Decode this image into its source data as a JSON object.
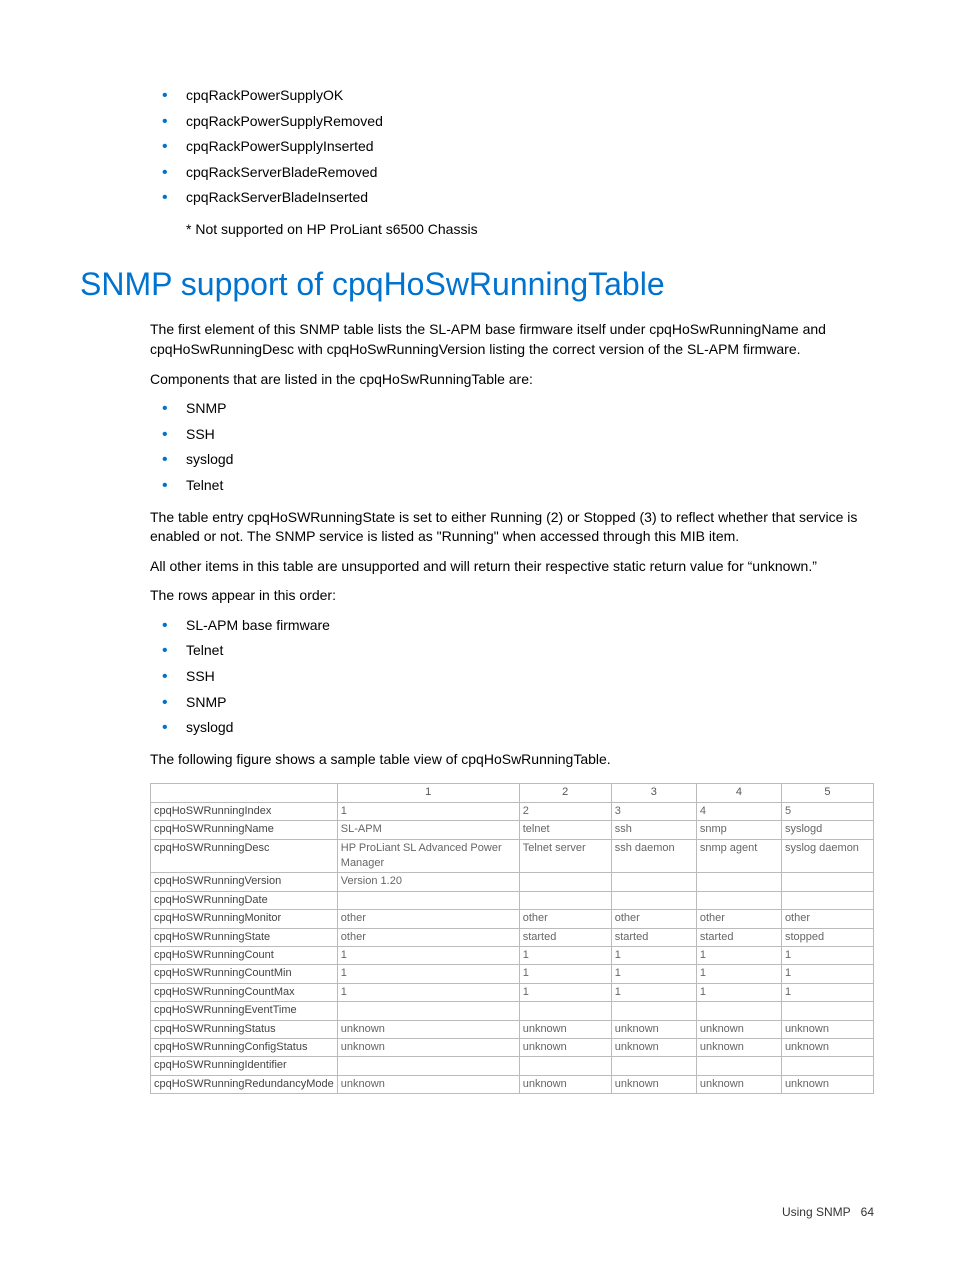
{
  "top_list": [
    "cpqRackPowerSupplyOK",
    "cpqRackPowerSupplyRemoved",
    "cpqRackPowerSupplyInserted",
    "cpqRackServerBladeRemoved",
    "cpqRackServerBladeInserted"
  ],
  "top_note": "* Not supported on HP ProLiant s6500 Chassis",
  "heading": "SNMP support of cpqHoSwRunningTable",
  "para1": "The first element of this SNMP table lists the SL-APM base firmware itself under cpqHoSwRunningName and cpqHoSwRunningDesc with cpqHoSwRunningVersion listing the correct version of the SL-APM firmware.",
  "para2": "Components that are listed in the cpqHoSwRunningTable are:",
  "components_list": [
    "SNMP",
    "SSH",
    "syslogd",
    "Telnet"
  ],
  "para3": "The table entry cpqHoSWRunningState is set to either Running (2) or Stopped (3) to reflect whether that service is enabled or not. The SNMP service is listed as \"Running\" when accessed through this MIB item.",
  "para4": "All other items in this table are unsupported and will return their respective static return value for “unknown.”",
  "para5": "The rows appear in this order:",
  "order_list": [
    "SL-APM base firmware",
    "Telnet",
    "SSH",
    "SNMP",
    "syslogd"
  ],
  "para6": "The following figure shows a sample table view of cpqHoSwRunningTable.",
  "table": {
    "col_headers": [
      "",
      "1",
      "2",
      "3",
      "4",
      "5"
    ],
    "col_widths": [
      "24%",
      "26%",
      "13%",
      "12%",
      "12%",
      "13%"
    ],
    "rows": [
      {
        "label": "cpqHoSWRunningIndex",
        "cells": [
          "1",
          "2",
          "3",
          "4",
          "5"
        ]
      },
      {
        "label": "cpqHoSWRunningName",
        "cells": [
          "SL-APM",
          "telnet",
          "ssh",
          "snmp",
          "syslogd"
        ]
      },
      {
        "label": "cpqHoSWRunningDesc",
        "cells": [
          "HP ProLiant SL Advanced Power Manager",
          "Telnet server",
          "ssh daemon",
          "snmp agent",
          "syslog daemon"
        ]
      },
      {
        "label": "cpqHoSWRunningVersion",
        "cells": [
          "Version 1.20",
          "",
          "",
          "",
          ""
        ]
      },
      {
        "label": "cpqHoSWRunningDate",
        "cells": [
          "",
          "",
          "",
          "",
          ""
        ]
      },
      {
        "label": "cpqHoSWRunningMonitor",
        "cells": [
          "other",
          "other",
          "other",
          "other",
          "other"
        ]
      },
      {
        "label": "cpqHoSWRunningState",
        "cells": [
          "other",
          "started",
          "started",
          "started",
          "stopped"
        ]
      },
      {
        "label": "cpqHoSWRunningCount",
        "cells": [
          "1",
          "1",
          "1",
          "1",
          "1"
        ]
      },
      {
        "label": "cpqHoSWRunningCountMin",
        "cells": [
          "1",
          "1",
          "1",
          "1",
          "1"
        ]
      },
      {
        "label": "cpqHoSWRunningCountMax",
        "cells": [
          "1",
          "1",
          "1",
          "1",
          "1"
        ]
      },
      {
        "label": "cpqHoSWRunningEventTime",
        "cells": [
          "",
          "",
          "",
          "",
          ""
        ]
      },
      {
        "label": "cpqHoSWRunningStatus",
        "cells": [
          "unknown",
          "unknown",
          "unknown",
          "unknown",
          "unknown"
        ]
      },
      {
        "label": "cpqHoSWRunningConfigStatus",
        "cells": [
          "unknown",
          "unknown",
          "unknown",
          "unknown",
          "unknown"
        ]
      },
      {
        "label": "cpqHoSWRunningIdentifier",
        "cells": [
          "",
          "",
          "",
          "",
          ""
        ]
      },
      {
        "label": "cpqHoSWRunningRedundancyMode",
        "cells": [
          "unknown",
          "unknown",
          "unknown",
          "unknown",
          "unknown"
        ]
      }
    ]
  },
  "footer": {
    "text": "Using SNMP",
    "page": "64"
  },
  "colors": {
    "accent": "#0073cf",
    "text": "#000000",
    "table_border": "#bbbbbb",
    "table_text": "#666666"
  }
}
